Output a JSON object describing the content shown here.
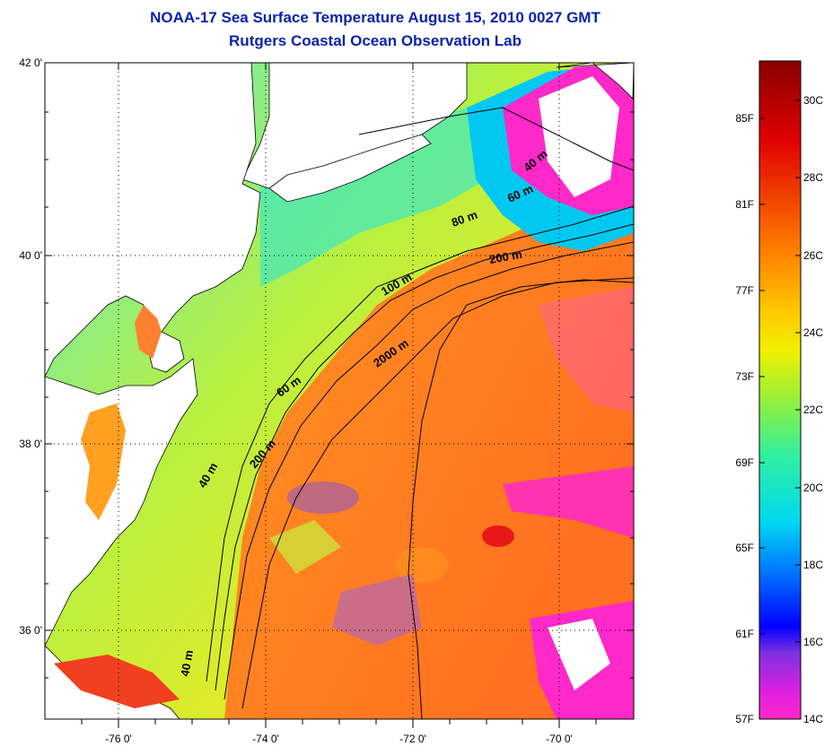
{
  "header": {
    "title": "NOAA-17 Sea Surface Temperature August 15, 2010 0027 GMT",
    "subtitle": "Rutgers Coastal Ocean Observation Lab"
  },
  "map": {
    "lat_ticks": [
      "42 0'",
      "40 0'",
      "38 0'",
      "36 0'"
    ],
    "lon_ticks": [
      "-76 0'",
      "-74 0'",
      "-72 0'",
      "-70 0'"
    ],
    "contour_labels": [
      "40 m",
      "60 m",
      "80 m",
      "200 m",
      "100 m",
      "60 m",
      "2000 m",
      "40 m",
      "200 m",
      "40 m"
    ],
    "colors": {
      "land": "#ffffff",
      "cloud": "#ff28c8",
      "contour": "#000000",
      "title": "#0a22b0"
    }
  },
  "colorbar": {
    "fahrenheit_labels": [
      "85F",
      "81F",
      "77F",
      "73F",
      "69F",
      "65F",
      "61F",
      "57F"
    ],
    "celsius_labels": [
      "30C",
      "28C",
      "26C",
      "24C",
      "22C",
      "20C",
      "18C",
      "16C",
      "14C"
    ]
  }
}
